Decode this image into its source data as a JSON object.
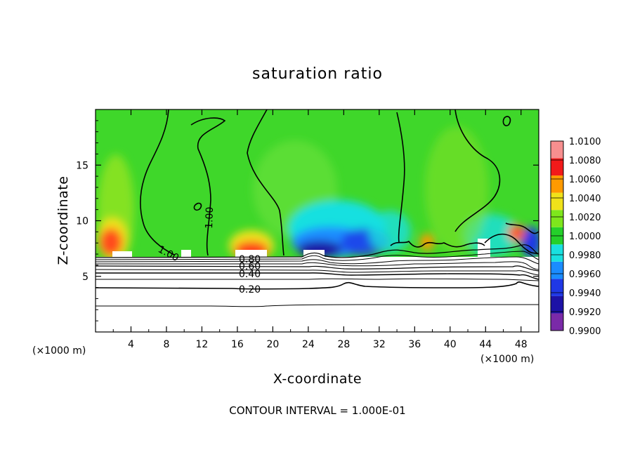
{
  "chart_data": {
    "type": "heatmap",
    "title": "saturation ratio",
    "xlabel": "X-coordinate",
    "ylabel": "Z-coordinate",
    "x_unit_left": "(×1000 m)",
    "x_unit_right": "(×1000 m)",
    "xlim": [
      0,
      50
    ],
    "ylim": [
      0,
      20
    ],
    "x_ticks": [
      4,
      8,
      12,
      16,
      20,
      24,
      28,
      32,
      36,
      40,
      44,
      48
    ],
    "x_tick_labels": [
      "4",
      "8",
      "12",
      "16",
      "20",
      "24",
      "28",
      "32",
      "36",
      "40",
      "44",
      "48"
    ],
    "y_ticks": [
      5,
      10,
      15
    ],
    "y_tick_labels": [
      "5",
      "10",
      "15"
    ],
    "colorbar": {
      "min": 0.99,
      "max": 1.01,
      "levels": [
        0.99,
        0.992,
        0.994,
        0.996,
        0.998,
        1.0,
        1.002,
        1.004,
        1.006,
        1.008,
        1.01
      ],
      "labels": [
        "0.9900",
        "0.9920",
        "0.9940",
        "0.9960",
        "0.9980",
        "1.0000",
        "1.0020",
        "1.0040",
        "1.0060",
        "1.0080",
        "1.0100"
      ],
      "colors": [
        "#7a2aa8",
        "#1d12a6",
        "#1f38e6",
        "#1a8cff",
        "#19e0e0",
        "#24d02a",
        "#7ee61c",
        "#f0e21a",
        "#ff9a00",
        "#f21a1a",
        "#f78f8f"
      ]
    },
    "contour_labels": [
      {
        "text": "1.00",
        "x": 5.5,
        "z": 8.2
      },
      {
        "text": "1.00",
        "x": 11.5,
        "z": 10.6
      },
      {
        "text": "0.80",
        "x": 17.6,
        "z": 6.4
      },
      {
        "text": "0.60",
        "x": 17.6,
        "z": 5.8
      },
      {
        "text": "0.40",
        "x": 17.6,
        "z": 5.2
      },
      {
        "text": "0.20",
        "x": 17.6,
        "z": 3.8
      }
    ],
    "contour_interval_note": "CONTOUR INTERVAL = 1.000E-01"
  }
}
